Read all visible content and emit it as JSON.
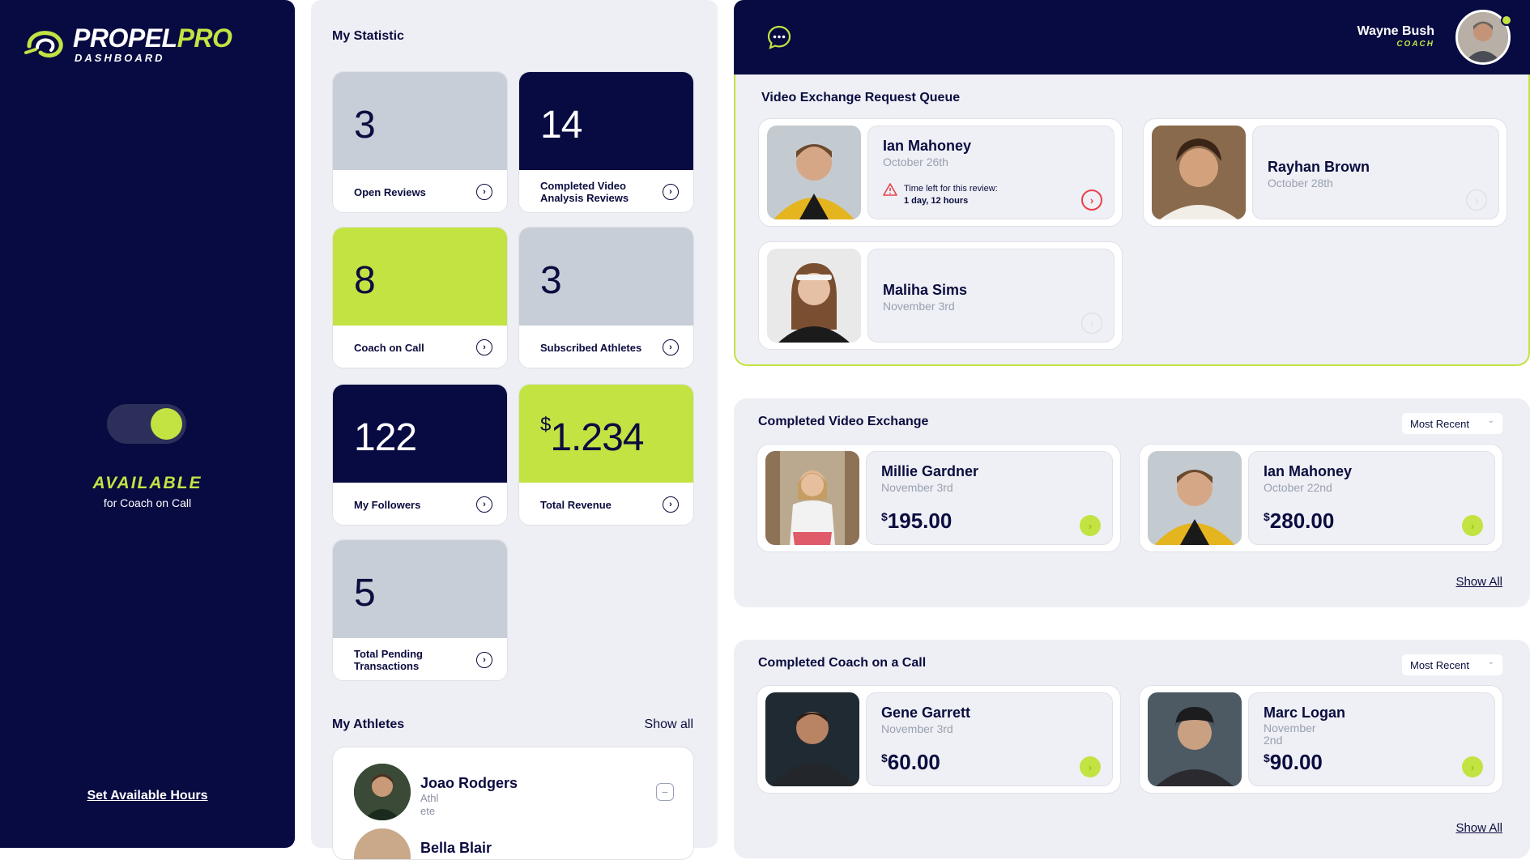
{
  "brand": {
    "name_main": "PROPEL",
    "name_accent": "PRO",
    "sub": "DASHBOARD"
  },
  "sidebar": {
    "status_title": "AVAILABLE",
    "status_sub": "for Coach on Call",
    "set_hours_link": "Set Available Hours",
    "toggle_on": true
  },
  "stats": {
    "title": "My Statistic",
    "cards": [
      {
        "value": "3",
        "label": "Open Reviews"
      },
      {
        "value": "14",
        "label": "Completed Video Analysis Reviews"
      },
      {
        "value": "8",
        "label": "Coach on Call"
      },
      {
        "value": "3",
        "label": "Subscribed Athletes"
      },
      {
        "value": "122",
        "label": "My Followers"
      },
      {
        "currency": "$",
        "value": "1.234",
        "label": "Total Revenue"
      },
      {
        "value": "5",
        "label": "Total Pending Transactions"
      }
    ]
  },
  "athletes": {
    "title": "My Athletes",
    "show_all": "Show all",
    "items": [
      {
        "name": "Joao Rodgers",
        "role": "Athl ete"
      },
      {
        "name": "Bella Blair"
      }
    ]
  },
  "header": {
    "user_name": "Wayne Bush",
    "user_role": "COACH"
  },
  "queue": {
    "title": "Video Exchange Request Queue",
    "items": [
      {
        "name": "Ian Mahoney",
        "date": "October 26th",
        "warn_label": "Time left for this review:",
        "warn_value": "1 day, 12 hours"
      },
      {
        "name": "Rayhan Brown",
        "date": "October 28th"
      },
      {
        "name": "Maliha Sims",
        "date": "November 3rd"
      }
    ]
  },
  "completed_video": {
    "title": "Completed Video Exchange",
    "sort": "Most Recent",
    "show_all": "Show All",
    "items": [
      {
        "name": "Millie Gardner",
        "date": "November 3rd",
        "currency": "$",
        "amount": "195.00"
      },
      {
        "name": "Ian Mahoney",
        "date": "October 22nd",
        "currency": "$",
        "amount": "280.00"
      }
    ]
  },
  "completed_call": {
    "title": "Completed Coach on a Call",
    "sort": "Most Recent",
    "show_all": "Show All",
    "items": [
      {
        "name": "Gene Garrett",
        "date": "November 3rd",
        "currency": "$",
        "amount": "60.00"
      },
      {
        "name": "Marc Logan",
        "date": "November 2nd",
        "currency": "$",
        "amount": "90.00"
      }
    ]
  },
  "colors": {
    "navy": "#080a42",
    "lime": "#c2e342",
    "gray_card": "#c8ced7",
    "panel": "#eeeff4",
    "alert_red": "#e8414a"
  },
  "icons": [
    "logo-mark-icon",
    "arrow-right-circle-icon",
    "chat-icon",
    "warning-icon",
    "minus-icon",
    "chevron-down-icon"
  ]
}
